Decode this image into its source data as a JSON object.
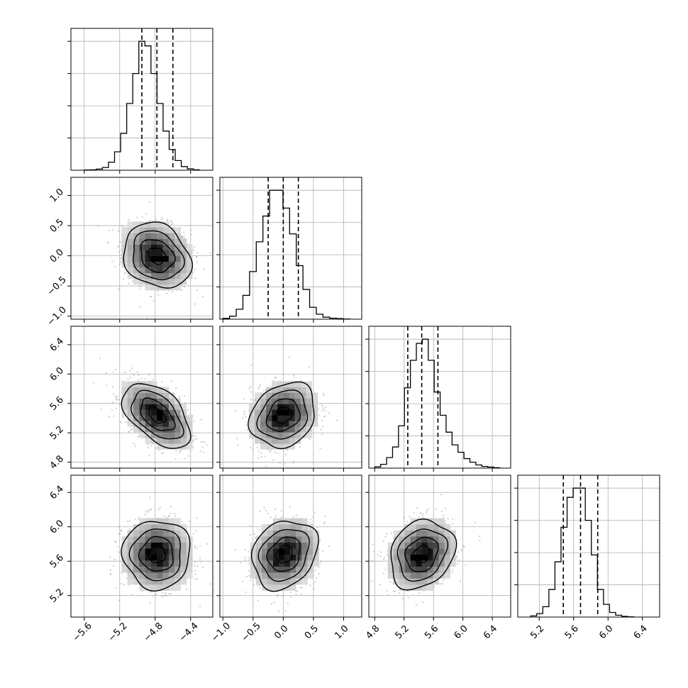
{
  "chart_data": {
    "type": "corner",
    "parameters": [
      {
        "index": 0,
        "range": [
          -5.75,
          -4.15
        ],
        "ticks": [
          "−5.6",
          "−5.2",
          "−4.8",
          "−4.4"
        ],
        "tick_values": [
          -5.6,
          -5.2,
          -4.8,
          -4.4
        ],
        "quantiles": [
          -4.95,
          -4.78,
          -4.6
        ],
        "hist_bins": [
          -5.6,
          -4.3
        ],
        "hist_counts": [
          1,
          2,
          5,
          12,
          35,
          80,
          160,
          290,
          420,
          560,
          540,
          420,
          290,
          170,
          90,
          42,
          16,
          6,
          2
        ]
      },
      {
        "index": 1,
        "range": [
          -1.05,
          1.3
        ],
        "ticks": [
          "−1.0",
          "−0.5",
          "0.0",
          "0.5",
          "1.0"
        ],
        "tick_values": [
          -1.0,
          -0.5,
          0.0,
          0.5,
          1.0
        ],
        "quantiles": [
          -0.25,
          0.0,
          0.25
        ],
        "hist_bins": [
          -1.0,
          1.1
        ],
        "hist_counts": [
          4,
          15,
          50,
          120,
          240,
          390,
          520,
          650,
          650,
          560,
          430,
          270,
          150,
          60,
          25,
          10,
          5,
          3,
          1
        ]
      },
      {
        "index": 2,
        "range": [
          4.72,
          6.65
        ],
        "ticks": [
          "4.8",
          "5.2",
          "5.6",
          "6.0",
          "6.4"
        ],
        "tick_values": [
          4.8,
          5.2,
          5.6,
          6.0,
          6.4
        ],
        "quantiles": [
          5.25,
          5.44,
          5.66
        ],
        "hist_bins": [
          4.8,
          6.5
        ],
        "hist_counts": [
          6,
          18,
          50,
          100,
          200,
          380,
          510,
          590,
          610,
          510,
          360,
          250,
          170,
          110,
          75,
          45,
          28,
          15,
          8,
          5,
          2
        ]
      },
      {
        "index": 3,
        "range": [
          4.95,
          6.6
        ],
        "ticks": [
          "5.2",
          "5.6",
          "6.0",
          "6.4"
        ],
        "tick_values": [
          5.2,
          5.6,
          6.0,
          6.4
        ],
        "quantiles": [
          5.48,
          5.68,
          5.88
        ],
        "hist_bins": [
          5.1,
          6.3
        ],
        "hist_counts": [
          5,
          15,
          45,
          120,
          240,
          390,
          520,
          560,
          560,
          420,
          270,
          120,
          55,
          20,
          8,
          3,
          1
        ]
      }
    ],
    "pairs": [
      {
        "row": 1,
        "col": 0,
        "mean": [
          -4.78,
          0.0
        ],
        "std": [
          0.19,
          0.27
        ],
        "corr": -0.2
      },
      {
        "row": 2,
        "col": 0,
        "mean": [
          -4.78,
          5.44
        ],
        "std": [
          0.19,
          0.22
        ],
        "corr": -0.5
      },
      {
        "row": 2,
        "col": 1,
        "mean": [
          0.0,
          5.44
        ],
        "std": [
          0.27,
          0.22
        ],
        "corr": 0.2
      },
      {
        "row": 3,
        "col": 0,
        "mean": [
          -4.78,
          5.68
        ],
        "std": [
          0.19,
          0.2
        ],
        "corr": 0.0
      },
      {
        "row": 3,
        "col": 1,
        "mean": [
          0.02,
          5.68
        ],
        "std": [
          0.27,
          0.2
        ],
        "corr": 0.2
      },
      {
        "row": 3,
        "col": 2,
        "mean": [
          5.44,
          5.68
        ],
        "std": [
          0.22,
          0.2
        ],
        "corr": 0.2
      }
    ],
    "grid": true,
    "contour_levels_sigma": [
      0.5,
      1.0,
      1.5,
      2.0
    ],
    "colors": {
      "line": "#000000",
      "grid": "#b0b0b0",
      "points": "#aaaaaa",
      "density_dark": "#000000",
      "density_light": "#f2f2f2"
    }
  }
}
